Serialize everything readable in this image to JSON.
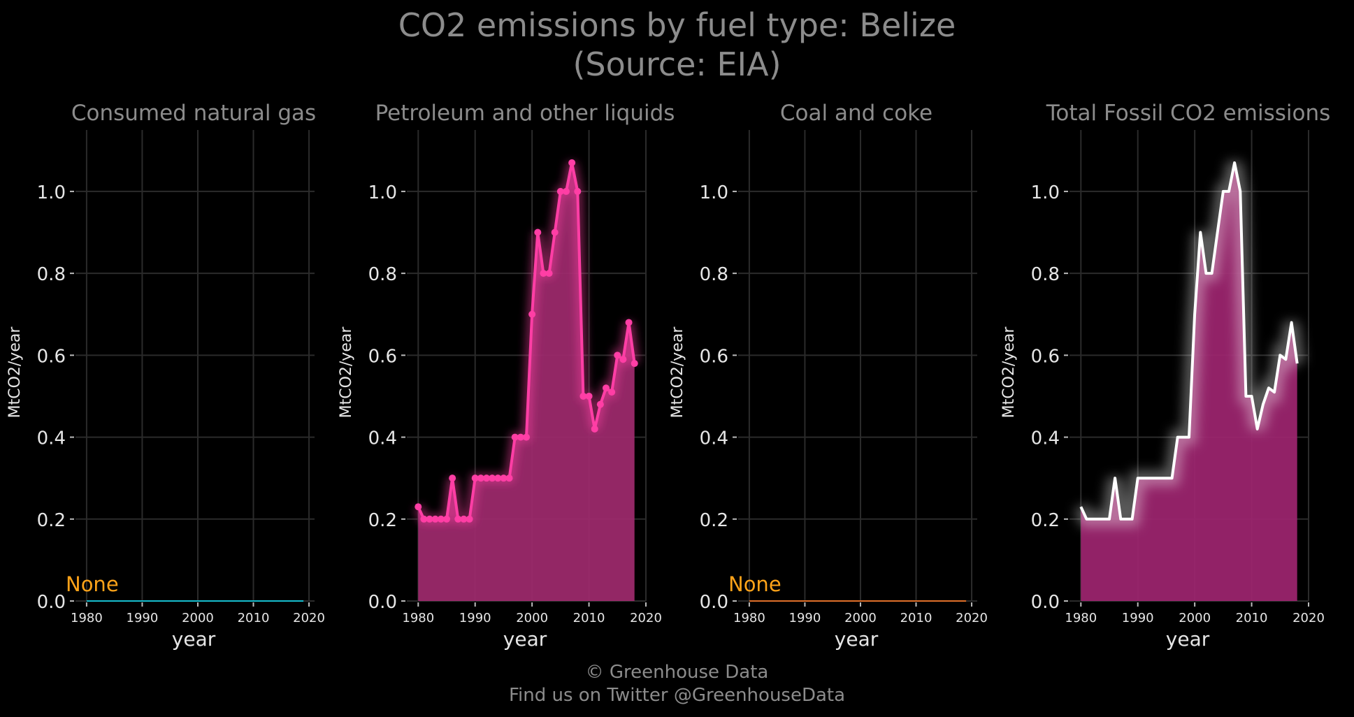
{
  "header": {
    "title": "CO2 emissions by fuel type: Belize",
    "source": "(Source: EIA)"
  },
  "footer": {
    "copyright": "© Greenhouse Data",
    "twitter": "Find us on Twitter @GreenhouseData"
  },
  "colors": {
    "background": "#000000",
    "gas_line": "#17becf",
    "petroleum": "#ff3ea5",
    "petroleum_fill": "#a02a6e",
    "coal_line": "#e0702a",
    "total_line": "#ffffff",
    "total_fill": "#9e2570",
    "none_label": "#ffa319",
    "grid": "#2b2b2b",
    "text": "#e6e6e6",
    "title_text": "#8c8c8c"
  },
  "chart_data": [
    {
      "type": "line",
      "title": "Consumed natural gas",
      "xlabel": "year",
      "ylabel": "MtCO2/year",
      "xlim": [
        1978,
        2021
      ],
      "ylim": [
        0,
        1.15
      ],
      "xticks": [
        "1980",
        "1990",
        "2000",
        "2010",
        "2020"
      ],
      "yticks": [
        "0.0",
        "0.2",
        "0.4",
        "0.6",
        "0.8",
        "1.0"
      ],
      "annotation": "None",
      "series": [
        {
          "x": [
            1980,
            2019
          ],
          "values": [
            0,
            0
          ]
        }
      ]
    },
    {
      "type": "area",
      "title": "Petroleum and other liquids",
      "xlabel": "year",
      "ylabel": "MtCO2/year",
      "xlim": [
        1978,
        2020
      ],
      "ylim": [
        0,
        1.15
      ],
      "xticks": [
        "1980",
        "1990",
        "2000",
        "2010",
        "2020"
      ],
      "yticks": [
        "0.0",
        "0.2",
        "0.4",
        "0.6",
        "0.8",
        "1.0"
      ],
      "series": [
        {
          "x": [
            1980,
            1981,
            1982,
            1983,
            1984,
            1985,
            1986,
            1987,
            1988,
            1989,
            1990,
            1991,
            1992,
            1993,
            1994,
            1995,
            1996,
            1997,
            1998,
            1999,
            2000,
            2001,
            2002,
            2003,
            2004,
            2005,
            2006,
            2007,
            2008,
            2009,
            2010,
            2011,
            2012,
            2013,
            2014,
            2015,
            2016,
            2017,
            2018
          ],
          "values": [
            0.23,
            0.2,
            0.2,
            0.2,
            0.2,
            0.2,
            0.3,
            0.2,
            0.2,
            0.2,
            0.3,
            0.3,
            0.3,
            0.3,
            0.3,
            0.3,
            0.3,
            0.4,
            0.4,
            0.4,
            0.7,
            0.9,
            0.8,
            0.8,
            0.9,
            1.0,
            1.0,
            1.07,
            1.0,
            0.5,
            0.5,
            0.42,
            0.48,
            0.52,
            0.51,
            0.6,
            0.59,
            0.68,
            0.58
          ]
        }
      ]
    },
    {
      "type": "line",
      "title": "Coal and coke",
      "xlabel": "year",
      "ylabel": "MtCO2/year",
      "xlim": [
        1978,
        2021
      ],
      "ylim": [
        0,
        1.15
      ],
      "xticks": [
        "1980",
        "1990",
        "2000",
        "2010",
        "2020"
      ],
      "yticks": [
        "0.0",
        "0.2",
        "0.4",
        "0.6",
        "0.8",
        "1.0"
      ],
      "annotation": "None",
      "series": [
        {
          "x": [
            1980,
            2019
          ],
          "values": [
            0,
            0
          ]
        }
      ]
    },
    {
      "type": "area",
      "title": "Total Fossil CO2 emissions",
      "xlabel": "year",
      "ylabel": "MtCO2/year",
      "xlim": [
        1978,
        2020
      ],
      "ylim": [
        0,
        1.15
      ],
      "xticks": [
        "1980",
        "1990",
        "2000",
        "2010",
        "2020"
      ],
      "yticks": [
        "0.0",
        "0.2",
        "0.4",
        "0.6",
        "0.8",
        "1.0"
      ],
      "series": [
        {
          "x": [
            1980,
            1981,
            1982,
            1983,
            1984,
            1985,
            1986,
            1987,
            1988,
            1989,
            1990,
            1991,
            1992,
            1993,
            1994,
            1995,
            1996,
            1997,
            1998,
            1999,
            2000,
            2001,
            2002,
            2003,
            2004,
            2005,
            2006,
            2007,
            2008,
            2009,
            2010,
            2011,
            2012,
            2013,
            2014,
            2015,
            2016,
            2017,
            2018
          ],
          "values": [
            0.23,
            0.2,
            0.2,
            0.2,
            0.2,
            0.2,
            0.3,
            0.2,
            0.2,
            0.2,
            0.3,
            0.3,
            0.3,
            0.3,
            0.3,
            0.3,
            0.3,
            0.4,
            0.4,
            0.4,
            0.7,
            0.9,
            0.8,
            0.8,
            0.9,
            1.0,
            1.0,
            1.07,
            1.0,
            0.5,
            0.5,
            0.42,
            0.48,
            0.52,
            0.51,
            0.6,
            0.59,
            0.68,
            0.58
          ]
        }
      ]
    }
  ]
}
